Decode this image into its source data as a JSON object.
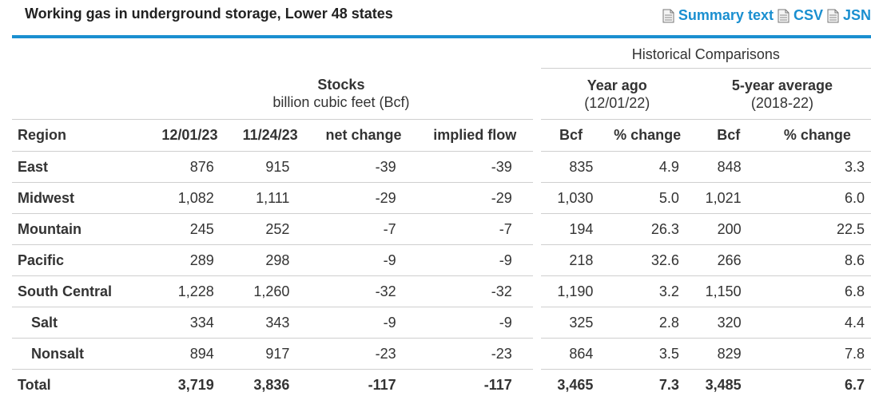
{
  "header": {
    "title": "Working gas in underground storage, Lower 48 states",
    "links": [
      "Summary text",
      "CSV",
      "JSN"
    ]
  },
  "table": {
    "historical_label": "Historical Comparisons",
    "stocks_label": "Stocks",
    "stocks_sub": "billion cubic feet (Bcf)",
    "yearago_label": "Year ago",
    "yearago_sub": "(12/01/22)",
    "fiveyr_label": "5-year average",
    "fiveyr_sub": "(2018-22)",
    "columns": [
      "Region",
      "12/01/23",
      "11/24/23",
      "net change",
      "implied flow",
      "Bcf",
      "% change",
      "Bcf",
      "% change"
    ],
    "rows": [
      {
        "region": "East",
        "indent": false,
        "cells": [
          "876",
          "915",
          "-39",
          "-39",
          "835",
          "4.9",
          "848",
          "3.3"
        ]
      },
      {
        "region": "Midwest",
        "indent": false,
        "cells": [
          "1,082",
          "1,111",
          "-29",
          "-29",
          "1,030",
          "5.0",
          "1,021",
          "6.0"
        ]
      },
      {
        "region": "Mountain",
        "indent": false,
        "cells": [
          "245",
          "252",
          "-7",
          "-7",
          "194",
          "26.3",
          "200",
          "22.5"
        ]
      },
      {
        "region": "Pacific",
        "indent": false,
        "cells": [
          "289",
          "298",
          "-9",
          "-9",
          "218",
          "32.6",
          "266",
          "8.6"
        ]
      },
      {
        "region": "South Central",
        "indent": false,
        "cells": [
          "1,228",
          "1,260",
          "-32",
          "-32",
          "1,190",
          "3.2",
          "1,150",
          "6.8"
        ]
      },
      {
        "region": "Salt",
        "indent": true,
        "cells": [
          "334",
          "343",
          "-9",
          "-9",
          "325",
          "2.8",
          "320",
          "4.4"
        ]
      },
      {
        "region": "Nonsalt",
        "indent": true,
        "cells": [
          "894",
          "917",
          "-23",
          "-23",
          "864",
          "3.5",
          "829",
          "7.8"
        ]
      },
      {
        "region": "Total",
        "indent": false,
        "total": true,
        "cells": [
          "3,719",
          "3,836",
          "-117",
          "-117",
          "3,465",
          "7.3",
          "3,485",
          "6.7"
        ]
      }
    ]
  },
  "colors": {
    "accent": "#1a8fd0",
    "rule": "#cfcfcf"
  }
}
